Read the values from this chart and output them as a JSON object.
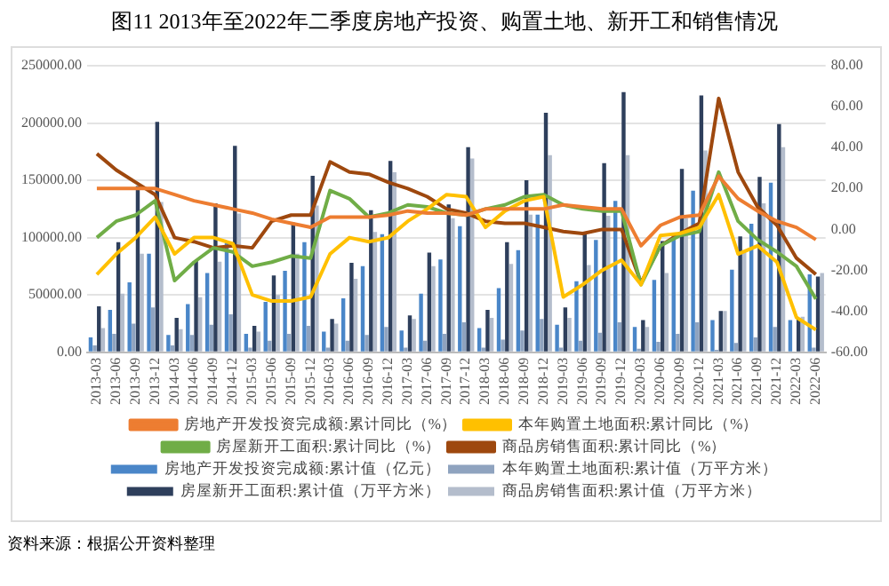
{
  "chart_data": {
    "type": "bar",
    "title": "图11    2013年至2022年二季度房地产投资、购置土地、新开工和销售情况",
    "annotations": [
      "资料来源：根据公开资料整理"
    ],
    "categories": [
      "2013-03",
      "2013-06",
      "2013-09",
      "2013-12",
      "2014-03",
      "2014-06",
      "2014-09",
      "2014-12",
      "2015-03",
      "2015-06",
      "2015-09",
      "2015-12",
      "2016-03",
      "2016-06",
      "2016-09",
      "2016-12",
      "2017-03",
      "2017-06",
      "2017-09",
      "2017-12",
      "2018-03",
      "2018-06",
      "2018-09",
      "2018-12",
      "2019-03",
      "2019-06",
      "2019-09",
      "2019-12",
      "2020-03",
      "2020-06",
      "2020-09",
      "2020-12",
      "2021-03",
      "2021-06",
      "2021-09",
      "2021-12",
      "2022-03",
      "2022-06"
    ],
    "ylim": [
      0,
      250000
    ],
    "yticks": [
      {
        "value": 0,
        "label": "0.00"
      },
      {
        "value": 50000,
        "label": "50000.00"
      },
      {
        "value": 100000,
        "label": "100000.00"
      },
      {
        "value": 150000,
        "label": "150000.00"
      },
      {
        "value": 200000,
        "label": "200000.00"
      },
      {
        "value": 250000,
        "label": "250000.00"
      }
    ],
    "y2lim": [
      -60,
      80
    ],
    "y2ticks": [
      {
        "value": -60,
        "label": "-60.00"
      },
      {
        "value": -40,
        "label": "-40.00"
      },
      {
        "value": -20,
        "label": "-20.00"
      },
      {
        "value": 0,
        "label": "0.00"
      },
      {
        "value": 20,
        "label": "20.00"
      },
      {
        "value": 40,
        "label": "40.00"
      },
      {
        "value": 60,
        "label": "60.00"
      },
      {
        "value": 80,
        "label": "80.00"
      }
    ],
    "grid": "y",
    "legend": "bottom",
    "series": [
      {
        "name": "房地产开发投资完成额:累计值（亿元）",
        "color": "#4a86c8",
        "values": [
          13000,
          37000,
          61000,
          86000,
          15000,
          42000,
          69000,
          95000,
          16000,
          44000,
          71000,
          96000,
          18000,
          47000,
          75000,
          103000,
          19000,
          51000,
          81000,
          110000,
          21000,
          56000,
          89000,
          120000,
          24000,
          62000,
          98000,
          132000,
          22000,
          63000,
          103000,
          141000,
          28000,
          72000,
          112000,
          148000,
          28000,
          68000
        ]
      },
      {
        "name": "本年购置土地面积:累计值（万平方米）",
        "color": "#8fa3bf",
        "values": [
          6000,
          16000,
          25000,
          39000,
          6000,
          15000,
          24000,
          33000,
          4000,
          10000,
          16000,
          23000,
          4000,
          10000,
          15000,
          22000,
          4000,
          10000,
          16000,
          26000,
          4000,
          11000,
          19000,
          29000,
          4000,
          10000,
          17000,
          26000,
          3000,
          9000,
          16000,
          26000,
          2000,
          8000,
          13000,
          22000,
          null,
          4000
        ]
      },
      {
        "name": "房屋新开工面积:累计值（万平方米）",
        "color": "#2e3f5c",
        "values": [
          40000,
          96000,
          145000,
          201000,
          30000,
          80000,
          130000,
          180000,
          23000,
          67000,
          113000,
          154000,
          29000,
          78000,
          124000,
          167000,
          32000,
          87000,
          129000,
          179000,
          37000,
          96000,
          150000,
          209000,
          39000,
          105000,
          165000,
          227000,
          28000,
          97000,
          160000,
          224000,
          36000,
          101000,
          153000,
          199000,
          30000,
          66000
        ]
      },
      {
        "name": "商品房销售面积:累计值（万平方米）",
        "color": "#b4bdcc",
        "values": [
          21000,
          51000,
          86000,
          131000,
          20000,
          48000,
          79000,
          121000,
          18000,
          50000,
          86000,
          128000,
          25000,
          64000,
          105000,
          157000,
          29000,
          75000,
          117000,
          169000,
          30000,
          77000,
          120000,
          172000,
          30000,
          76000,
          119000,
          172000,
          22000,
          69000,
          117000,
          176000,
          36000,
          89000,
          130000,
          179000,
          31000,
          69000
        ]
      },
      {
        "type": "line",
        "axis": "y2",
        "name": "房地产开发投资完成额:累计同比（%）",
        "color": "#ed7d31",
        "values": [
          20,
          20,
          20,
          20,
          17,
          14,
          12,
          10,
          8,
          5,
          3,
          1,
          6,
          6,
          6,
          7,
          9,
          8,
          8,
          7,
          10,
          10,
          10,
          10,
          12,
          11,
          10,
          10,
          -8,
          2,
          6,
          7,
          26,
          15,
          9,
          4,
          1,
          -5
        ]
      },
      {
        "type": "line",
        "axis": "y2",
        "name": "本年购置土地面积:累计同比（%）",
        "color": "#ffc000",
        "values": [
          -22,
          -12,
          -4,
          6,
          -12,
          -4,
          -4,
          -7,
          -32,
          -35,
          -35,
          -33,
          -12,
          -4,
          -6,
          -4,
          4,
          10,
          17,
          16,
          1,
          9,
          14,
          16,
          -33,
          -27,
          -20,
          -15,
          -27,
          -3,
          -2,
          1,
          17,
          -12,
          -8,
          -16,
          -43,
          -49
        ]
      },
      {
        "type": "line",
        "axis": "y2",
        "name": "房屋新开工面积:累计同比（%）",
        "color": "#70ad47",
        "values": [
          -4,
          4,
          7,
          14,
          -25,
          -16,
          -9,
          -11,
          -18,
          -16,
          -13,
          -14,
          19,
          15,
          6,
          8,
          12,
          11,
          8,
          7,
          10,
          12,
          16,
          17,
          12,
          10,
          9,
          9,
          -27,
          -8,
          -3,
          -1,
          28,
          4,
          -5,
          -11,
          -18,
          -34
        ]
      },
      {
        "type": "line",
        "axis": "y2",
        "name": "商品房销售面积:累计同比（%）",
        "color": "#9e480e",
        "values": [
          37,
          29,
          23,
          17,
          -4,
          -6,
          -9,
          -8,
          -9,
          4,
          7,
          7,
          33,
          28,
          27,
          23,
          20,
          16,
          10,
          8,
          4,
          3,
          3,
          1,
          -1,
          -2,
          0,
          0,
          -26,
          -8,
          -2,
          3,
          64,
          28,
          11,
          2,
          -14,
          -22
        ]
      }
    ]
  }
}
